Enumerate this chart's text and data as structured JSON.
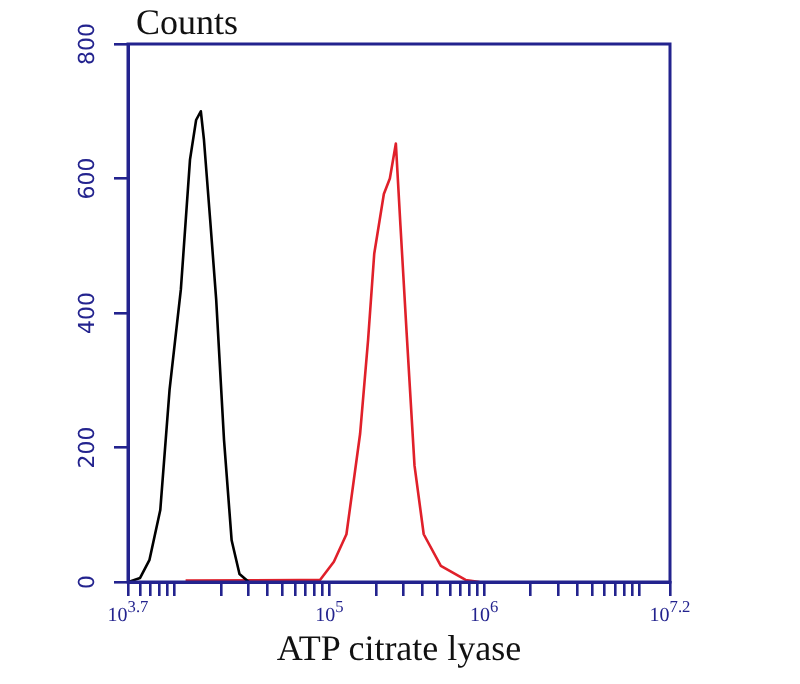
{
  "chart_data": {
    "type": "line",
    "ylabel": "Counts",
    "xlabel": "ATP citrate lyase",
    "log": "x",
    "grid": false,
    "marker": "none",
    "line_style": "solid",
    "xlim": [
      5012,
      15848932
    ],
    "ylim": [
      0,
      800
    ],
    "xticks": [
      {
        "value": 5012,
        "label": "10$^{3.7}$"
      },
      {
        "value": 6000,
        "label": null
      },
      {
        "value": 7000,
        "label": null
      },
      {
        "value": 8000,
        "label": null
      },
      {
        "value": 9000,
        "label": null
      },
      {
        "value": 10000,
        "label": null
      },
      {
        "value": 20000,
        "label": null
      },
      {
        "value": 30000,
        "label": null
      },
      {
        "value": 40000,
        "label": null
      },
      {
        "value": 50000,
        "label": null
      },
      {
        "value": 60000,
        "label": null
      },
      {
        "value": 70000,
        "label": null
      },
      {
        "value": 80000,
        "label": null
      },
      {
        "value": 90000,
        "label": null
      },
      {
        "value": 100000,
        "label": "10$^{5}$"
      },
      {
        "value": 200000,
        "label": null
      },
      {
        "value": 300000,
        "label": null
      },
      {
        "value": 400000,
        "label": null
      },
      {
        "value": 500000,
        "label": null
      },
      {
        "value": 600000,
        "label": null
      },
      {
        "value": 700000,
        "label": null
      },
      {
        "value": 800000,
        "label": null
      },
      {
        "value": 900000,
        "label": null
      },
      {
        "value": 1000000,
        "label": "10$^{6}$"
      },
      {
        "value": 2000000,
        "label": null
      },
      {
        "value": 3000000,
        "label": null
      },
      {
        "value": 4000000,
        "label": null
      },
      {
        "value": 5000000,
        "label": null
      },
      {
        "value": 6000000,
        "label": null
      },
      {
        "value": 7000000,
        "label": null
      },
      {
        "value": 8000000,
        "label": null
      },
      {
        "value": 9000000,
        "label": null
      },
      {
        "value": 10000000,
        "label": null
      },
      {
        "value": 15848932,
        "label": "10$^{7.2}$"
      }
    ],
    "yticks": [
      0,
      200,
      400,
      600,
      800
    ],
    "series": [
      {
        "color": "#000000",
        "x": [
          5012,
          6000,
          6900,
          8100,
          9300,
          11000,
          12600,
          13800,
          14800,
          15500,
          17000,
          18600,
          20900,
          23400,
          26300,
          30200
        ],
        "values": [
          0,
          6,
          33,
          107,
          286,
          435,
          628,
          687,
          700,
          658,
          539,
          420,
          211,
          62,
          12,
          0
        ]
      },
      {
        "color": "#e0202a",
        "x": [
          11800,
          64600,
          87100,
          107000,
          129000,
          158000,
          178000,
          195000,
          225000,
          246000,
          269000,
          288000,
          316000,
          355000,
          407000,
          525000,
          759000,
          933000
        ],
        "values": [
          2,
          3,
          3,
          30,
          71,
          220,
          360,
          488,
          577,
          600,
          652,
          530,
          369,
          173,
          71,
          24,
          3,
          0
        ]
      }
    ]
  }
}
